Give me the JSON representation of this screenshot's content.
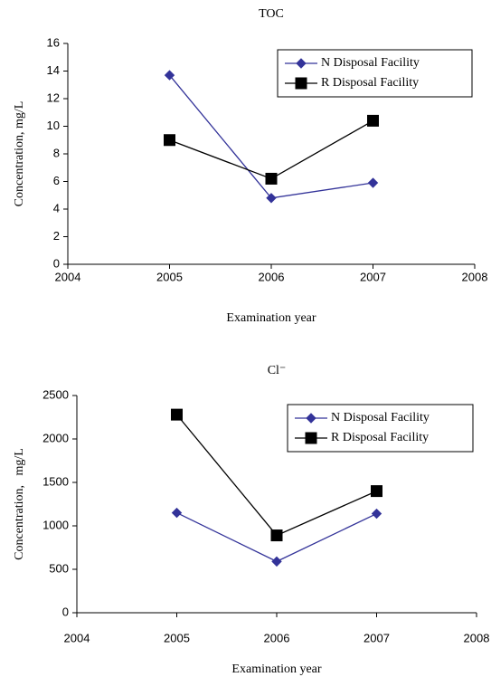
{
  "chart_data": [
    {
      "type": "line",
      "title": "TOC",
      "x_label": "Examination year",
      "y_label": "Concentration, mg/L",
      "x": [
        2005,
        2006,
        2007
      ],
      "xlim": [
        2004,
        2008
      ],
      "xticks": [
        2004,
        2005,
        2006,
        2007,
        2008
      ],
      "ylim": [
        0,
        16
      ],
      "yticks": [
        0,
        2,
        4,
        6,
        8,
        10,
        12,
        14,
        16
      ],
      "grid": false,
      "legend": "upper right",
      "series": [
        {
          "name": "N Disposal Facility",
          "color": "#333399",
          "marker": "diamond",
          "values": [
            13.7,
            4.8,
            5.9
          ]
        },
        {
          "name": "R Disposal Facility",
          "color": "#000000",
          "marker": "square",
          "values": [
            9.0,
            6.2,
            10.4
          ]
        }
      ]
    },
    {
      "type": "line",
      "title": "Cl⁻",
      "x_label": "Examination year",
      "y_label": "Concentration,   mg/L",
      "x": [
        2005,
        2006,
        2007
      ],
      "xlim": [
        2004,
        2008
      ],
      "xticks": [
        2004,
        2005,
        2006,
        2007,
        2008
      ],
      "ylim": [
        0,
        2500
      ],
      "yticks": [
        0,
        500,
        1000,
        1500,
        2000,
        2500
      ],
      "grid": false,
      "legend": "upper right",
      "series": [
        {
          "name": "N Disposal Facility",
          "color": "#333399",
          "marker": "diamond",
          "values": [
            1150,
            590,
            1140
          ]
        },
        {
          "name": "R Disposal Facility",
          "color": "#000000",
          "marker": "square",
          "values": [
            2280,
            890,
            1400
          ]
        }
      ]
    }
  ]
}
